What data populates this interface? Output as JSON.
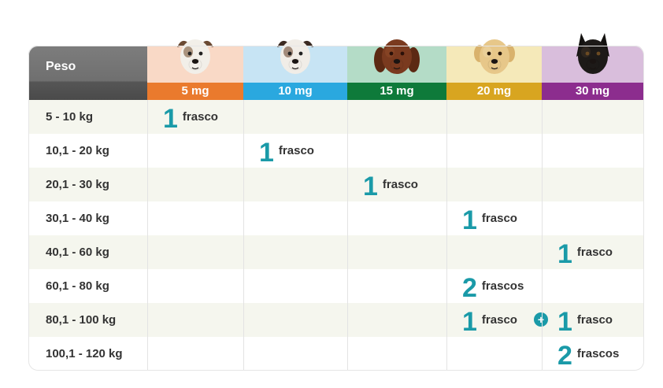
{
  "header": {
    "peso_label": "Peso"
  },
  "columns": [
    {
      "label": "5 mg",
      "color": "#ea7a2d",
      "bg": "#f9d9c6",
      "dog": "jack-russell-dog-icon"
    },
    {
      "label": "10 mg",
      "color": "#2aa8df",
      "bg": "#c7e4f4",
      "dog": "australian-shepherd-dog-icon"
    },
    {
      "label": "15 mg",
      "color": "#0e7a3a",
      "bg": "#b4dcc7",
      "dog": "brown-pointer-dog-icon"
    },
    {
      "label": "20 mg",
      "color": "#d8a520",
      "bg": "#f5e9b9",
      "dog": "labrador-dog-icon"
    },
    {
      "label": "30 mg",
      "color": "#8c2d8e",
      "bg": "#d9bedc",
      "dog": "german-shepherd-dog-icon"
    }
  ],
  "rows": [
    {
      "peso": "5 - 10 kg",
      "entries": [
        {
          "col": 0,
          "num": "1",
          "unit": "frasco"
        }
      ]
    },
    {
      "peso": "10,1 - 20 kg",
      "entries": [
        {
          "col": 1,
          "num": "1",
          "unit": "frasco"
        }
      ]
    },
    {
      "peso": "20,1 - 30 kg",
      "entries": [
        {
          "col": 2,
          "num": "1",
          "unit": "frasco"
        }
      ]
    },
    {
      "peso": "30,1 - 40 kg",
      "entries": [
        {
          "col": 3,
          "num": "1",
          "unit": "frasco"
        }
      ]
    },
    {
      "peso": "40,1 - 60 kg",
      "entries": [
        {
          "col": 4,
          "num": "1",
          "unit": "frasco"
        }
      ]
    },
    {
      "peso": "60,1 - 80 kg",
      "entries": [
        {
          "col": 3,
          "num": "2",
          "unit": "frascos"
        }
      ]
    },
    {
      "peso": "80,1 - 100 kg",
      "entries": [
        {
          "col": 3,
          "num": "1",
          "unit": "frasco"
        },
        {
          "col": 4,
          "num": "1",
          "unit": "frasco"
        }
      ],
      "plus": "+"
    },
    {
      "peso": "100,1 - 120 kg",
      "entries": [
        {
          "col": 4,
          "num": "2",
          "unit": "frascos"
        }
      ]
    }
  ],
  "colors": {
    "accent": "#1a9aa8",
    "row_alt": "#f5f6ee",
    "header_gray": "#707070"
  }
}
